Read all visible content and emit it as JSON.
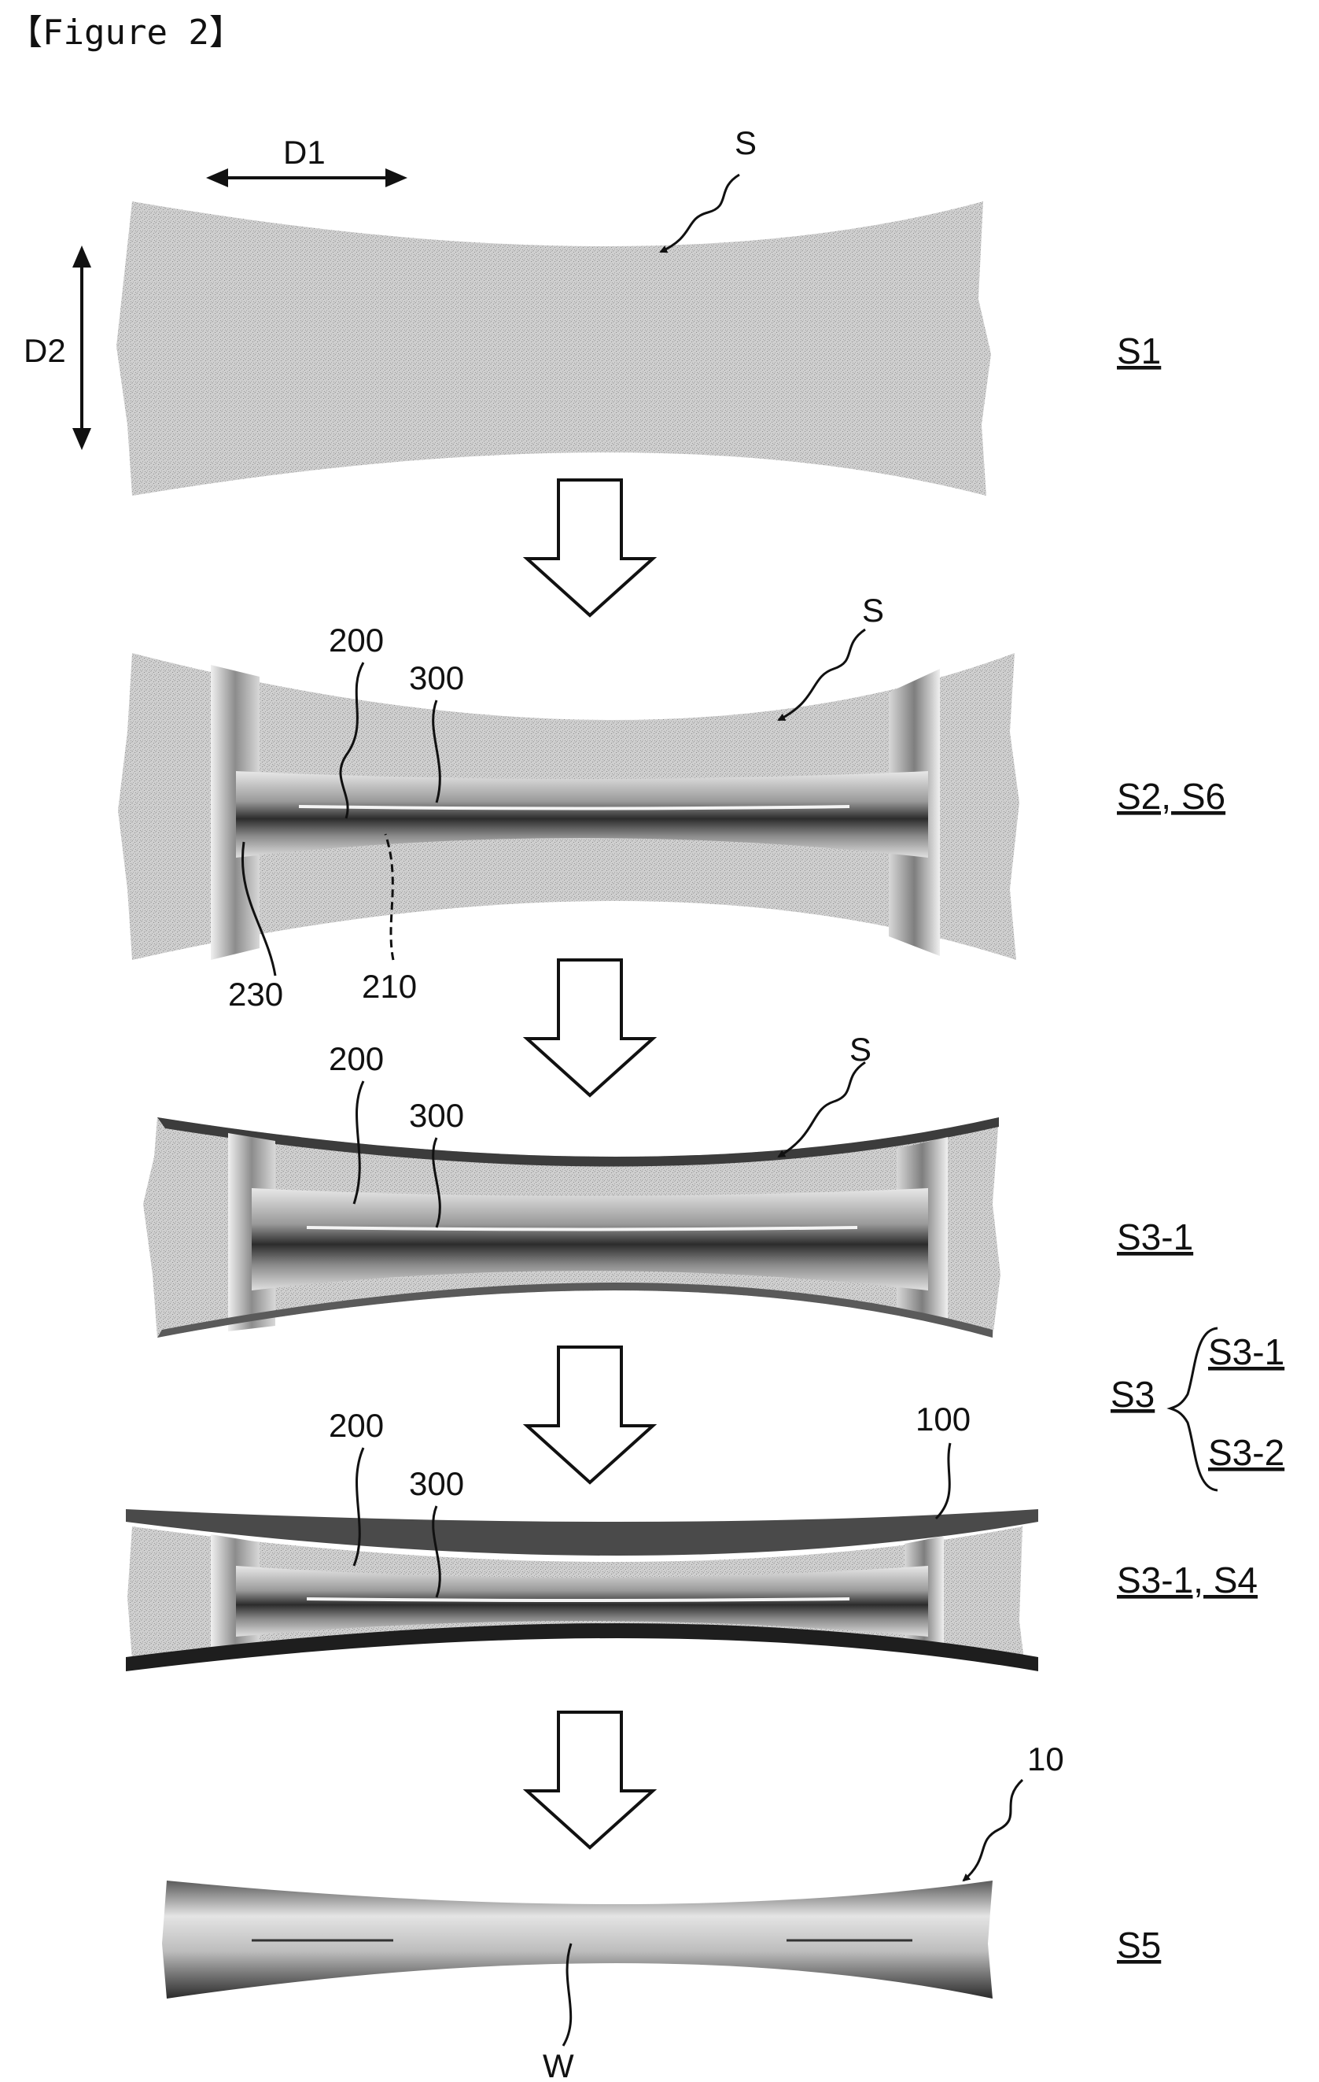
{
  "figure_title": "【Figure 2】",
  "directions": {
    "d1": "D1",
    "d2": "D2"
  },
  "steps": {
    "s1": "S1",
    "s2_s6": "S2, S6",
    "s3_1": "S3-1",
    "s3": "S3",
    "s3_1_sub": "S3-1",
    "s3_2_sub": "S3-2",
    "s3_1_s4": "S3-1, S4",
    "s5": "S5"
  },
  "refs": {
    "sheet": "S",
    "bead": "200",
    "groove": "300",
    "r210": "210",
    "r230": "230",
    "mold": "100",
    "product": "10",
    "weld": "W"
  },
  "colors": {
    "sheet": "#c8c8c8",
    "bead_dark": "#3a3a3a",
    "line": "#111111"
  }
}
